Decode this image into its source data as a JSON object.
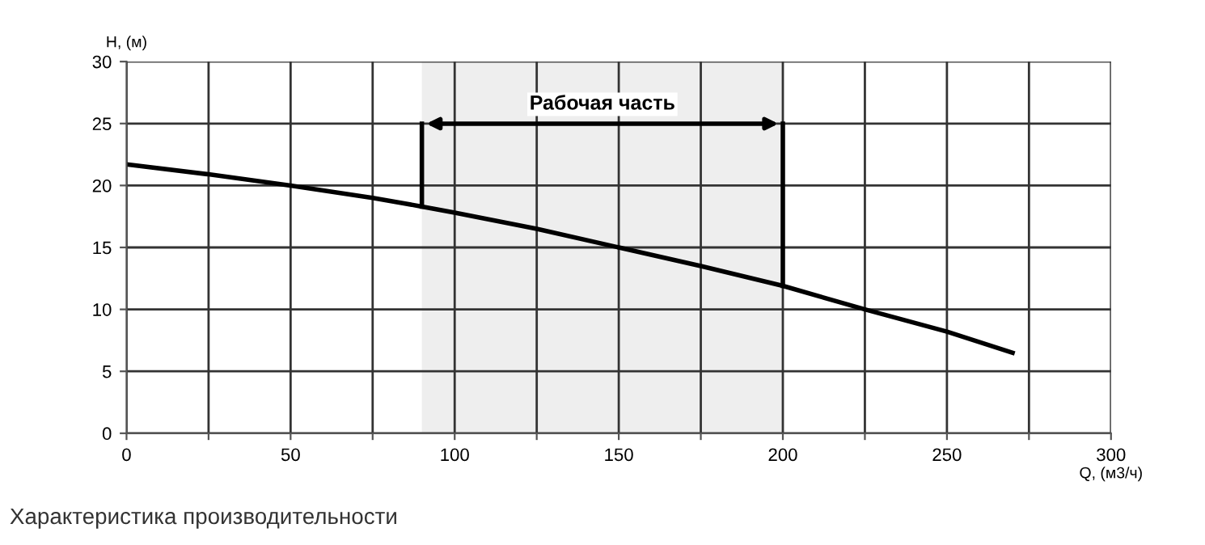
{
  "chart_data": {
    "type": "line",
    "x": [
      0,
      25,
      50,
      75,
      90,
      100,
      125,
      150,
      175,
      200,
      225,
      250,
      270
    ],
    "series": [
      {
        "color": "#000000",
        "values": [
          21.7,
          20.9,
          20.0,
          19.0,
          18.3,
          17.8,
          16.5,
          15.0,
          13.5,
          11.9,
          10.0,
          8.2,
          6.5
        ]
      }
    ],
    "xlabel": "Q, (м3/ч)",
    "ylabel": "H, (м)",
    "xlim": [
      0,
      300
    ],
    "ylim": [
      0,
      30
    ],
    "xticks": [
      0,
      {
        "value": 25,
        "label": null
      },
      50,
      {
        "value": 75,
        "label": null
      },
      100,
      {
        "value": 125,
        "label": null
      },
      150,
      {
        "value": 175,
        "label": null
      },
      200,
      {
        "value": 225,
        "label": null
      },
      250,
      {
        "value": 275,
        "label": null
      },
      300
    ],
    "yticks": [
      0,
      5,
      10,
      15,
      20,
      25,
      30
    ],
    "grid": true,
    "legend": false,
    "marker": "none",
    "line_style": "solid",
    "bands": [
      {
        "axis": "x",
        "from": 90,
        "to": 200,
        "label": "Рабочая часть",
        "color": "#eeeeee"
      }
    ],
    "annotations": [
      "Характеристика производительности"
    ]
  }
}
